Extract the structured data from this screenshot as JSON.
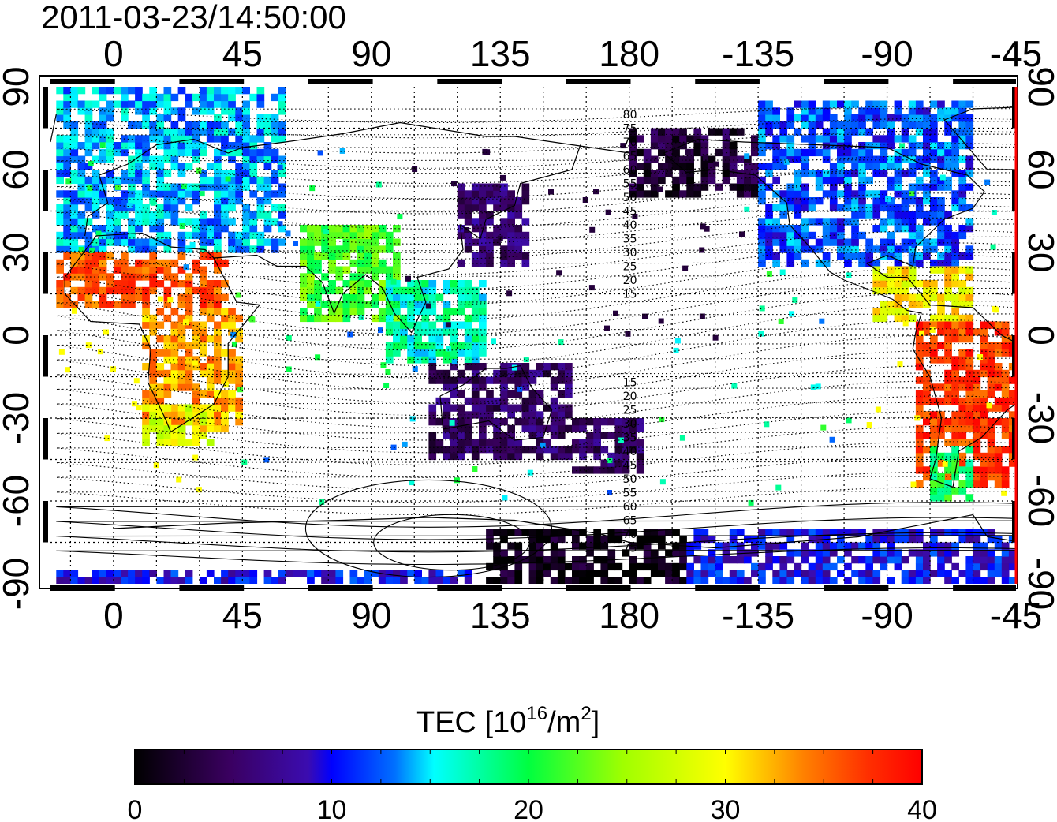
{
  "title": "2011-03-23/14:50:00",
  "map": {
    "projection": "equirectangular",
    "lon_center": 180,
    "lon_range_west": -22,
    "lon_range_east": 315,
    "lat_range": [
      -90,
      90
    ],
    "top_lon_ticks": [
      "0",
      "45",
      "90",
      "135",
      "180",
      "-135",
      "-90",
      "-45"
    ],
    "bottom_lon_ticks": [
      "0",
      "45",
      "90",
      "135",
      "180",
      "-135",
      "-90",
      "-45"
    ],
    "lat_ticks": [
      "90",
      "60",
      "30",
      "0",
      "-30",
      "-60",
      "-90"
    ],
    "grid": "dotted every 15 degrees",
    "red_meridian_lon": -45,
    "contour_labels_north": [
      "80",
      "75",
      "70",
      "65",
      "60",
      "55",
      "50",
      "45",
      "40",
      "35",
      "30",
      "25",
      "20",
      "15"
    ],
    "contour_labels_south": [
      "15",
      "20",
      "25",
      "30",
      "35",
      "40",
      "45",
      "50",
      "55",
      "60",
      "65",
      "70",
      "75"
    ]
  },
  "colorbar": {
    "title_prefix": "TEC  [10",
    "title_sup": "16",
    "title_mid": "/m",
    "title_sup2": "2",
    "title_suffix": "]",
    "min": 0,
    "max": 40,
    "tick_labels": [
      "0",
      "10",
      "20",
      "30",
      "40"
    ],
    "colormap": "jet-like (black-purple-blue-cyan-green-yellow-orange-red)"
  },
  "tec_regions": [
    {
      "name": "Europe / North Atlantic",
      "lon": [
        -20,
        60
      ],
      "lat": [
        30,
        88
      ],
      "tec": 14
    },
    {
      "name": "North Africa",
      "lon": [
        -20,
        40
      ],
      "lat": [
        10,
        30
      ],
      "tec": 36
    },
    {
      "name": "Central / Southern Africa",
      "lon": [
        10,
        45
      ],
      "lat": [
        -35,
        10
      ],
      "tec": 33
    },
    {
      "name": "Southern Africa tip",
      "lon": [
        10,
        35
      ],
      "lat": [
        -40,
        -25
      ],
      "tec": 28
    },
    {
      "name": "South Asia",
      "lon": [
        65,
        100
      ],
      "lat": [
        5,
        40
      ],
      "tec": 22
    },
    {
      "name": "Southeast Asia",
      "lon": [
        95,
        130
      ],
      "lat": [
        -10,
        20
      ],
      "tec": 17
    },
    {
      "name": "East Asia / Japan",
      "lon": [
        120,
        145
      ],
      "lat": [
        25,
        55
      ],
      "tec": 6
    },
    {
      "name": "Australia",
      "lon": [
        110,
        160
      ],
      "lat": [
        -45,
        -10
      ],
      "tec": 5
    },
    {
      "name": "New Zealand region",
      "lon": [
        160,
        185
      ],
      "lat": [
        -50,
        -30
      ],
      "tec": 5
    },
    {
      "name": "Alaska / Pacific north",
      "lon": [
        180,
        225
      ],
      "lat": [
        50,
        75
      ],
      "tec": 3
    },
    {
      "name": "North America",
      "lon": [
        225,
        300
      ],
      "lat": [
        25,
        85
      ],
      "tec": 12
    },
    {
      "name": "Central America / Caribbean",
      "lon": [
        265,
        300
      ],
      "lat": [
        5,
        25
      ],
      "tec": 30
    },
    {
      "name": "South America",
      "lon": [
        280,
        330
      ],
      "lat": [
        -55,
        5
      ],
      "tec": 37
    },
    {
      "name": "South America south",
      "lon": [
        285,
        300
      ],
      "lat": [
        -60,
        -40
      ],
      "tec": 20
    },
    {
      "name": "Antarctica",
      "lon": [
        130,
        200
      ],
      "lat": [
        -90,
        -70
      ],
      "tec": 1
    },
    {
      "name": "Antarctic margin",
      "lon": [
        200,
        360
      ],
      "lat": [
        -90,
        -70
      ],
      "tec": 10
    },
    {
      "name": "South polar margin west",
      "lon": [
        -20,
        130
      ],
      "lat": [
        -90,
        -85
      ],
      "tec": 10
    }
  ]
}
